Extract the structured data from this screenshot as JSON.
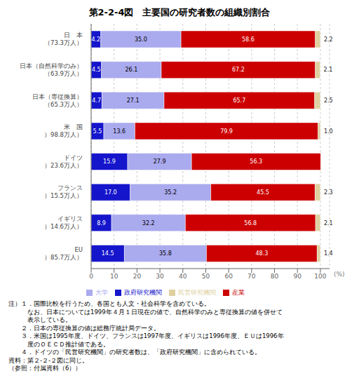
{
  "chart_data": {
    "type": "bar",
    "orientation": "horizontal",
    "stacked": true,
    "title": "第2-2-4図　主要国の研究者数の組織別割合",
    "categories": [
      "日　本\n（73.3万人）",
      "日本（自然科学のみ）\n（63.9万人）",
      "日本（専従換算）\n（65.3万人）",
      "米　国\n）98.8万人）",
      "ドイツ\n）23.6万人）",
      "フランス\n）15.5万人）",
      "イギリス\n）14.6万人）",
      "EU\n）85.7万人）"
    ],
    "series": [
      {
        "name": "政府研究機関",
        "color": "#1515CC",
        "values": [
          4.2,
          4.5,
          4.7,
          5.5,
          15.9,
          17.0,
          8.9,
          14.5
        ],
        "value_labels": [
          "4.2",
          "4.5",
          "4.7",
          "5.5",
          "15.9",
          "17.0",
          "8.9",
          "14.5"
        ]
      },
      {
        "name": "大学",
        "color": "#AAAAEE",
        "values": [
          35.0,
          26.1,
          27.1,
          13.6,
          27.9,
          35.2,
          32.2,
          35.8
        ],
        "value_labels": [
          "35.0",
          "26.1",
          "27.1",
          "13.6",
          "27.9",
          "35.2",
          "32.2",
          "35.8"
        ]
      },
      {
        "name": "産業",
        "color": "#CC0000",
        "values": [
          58.6,
          67.2,
          65.7,
          79.9,
          56.3,
          45.5,
          56.8,
          48.3
        ],
        "value_labels": [
          "58.6",
          "67.2",
          "65.7",
          "79.9",
          "56.3",
          "45.5",
          "56.8",
          "48.3"
        ]
      },
      {
        "name": "民営研究機関",
        "color": "#DED0A0",
        "values": [
          2.2,
          2.1,
          2.5,
          1.0,
          0.0,
          2.3,
          2.1,
          1.4
        ],
        "value_labels": [
          "2.2",
          "2.1",
          "2.5",
          "1.0",
          null,
          "2.3",
          "2.1",
          "1.4"
        ]
      }
    ],
    "xlim": [
      0,
      104
    ],
    "xticks": [
      0,
      10,
      20,
      30,
      40,
      50,
      60,
      70,
      80,
      90,
      100
    ],
    "xlabel": "(%)",
    "grid": true,
    "legend": "bottom",
    "data_labels": true,
    "annotations": [
      "注）１．国際比較を行うため、各国とも人文・社会科学を含めている。",
      "　　　なお、日本については1999年４月１日現在の値で、自然科学のみと専従換算の値を併せて",
      "　　　表示している。",
      "　　２．日本の専従換算の値は総務庁統計局データ。",
      "　　３．米国は1995年度、ドイツ、フランスは1997年度、イギリスは1996年度、ＥＵは1996年",
      "　　　度のＯＥＣＤ推計値である。",
      "　　４．ドイツの「民営研究機関」の研究者数は、「政府研究機関」に含められている。",
      "資料：第２-２-２図に同じ。",
      "（参照：付属資料（6））"
    ]
  }
}
